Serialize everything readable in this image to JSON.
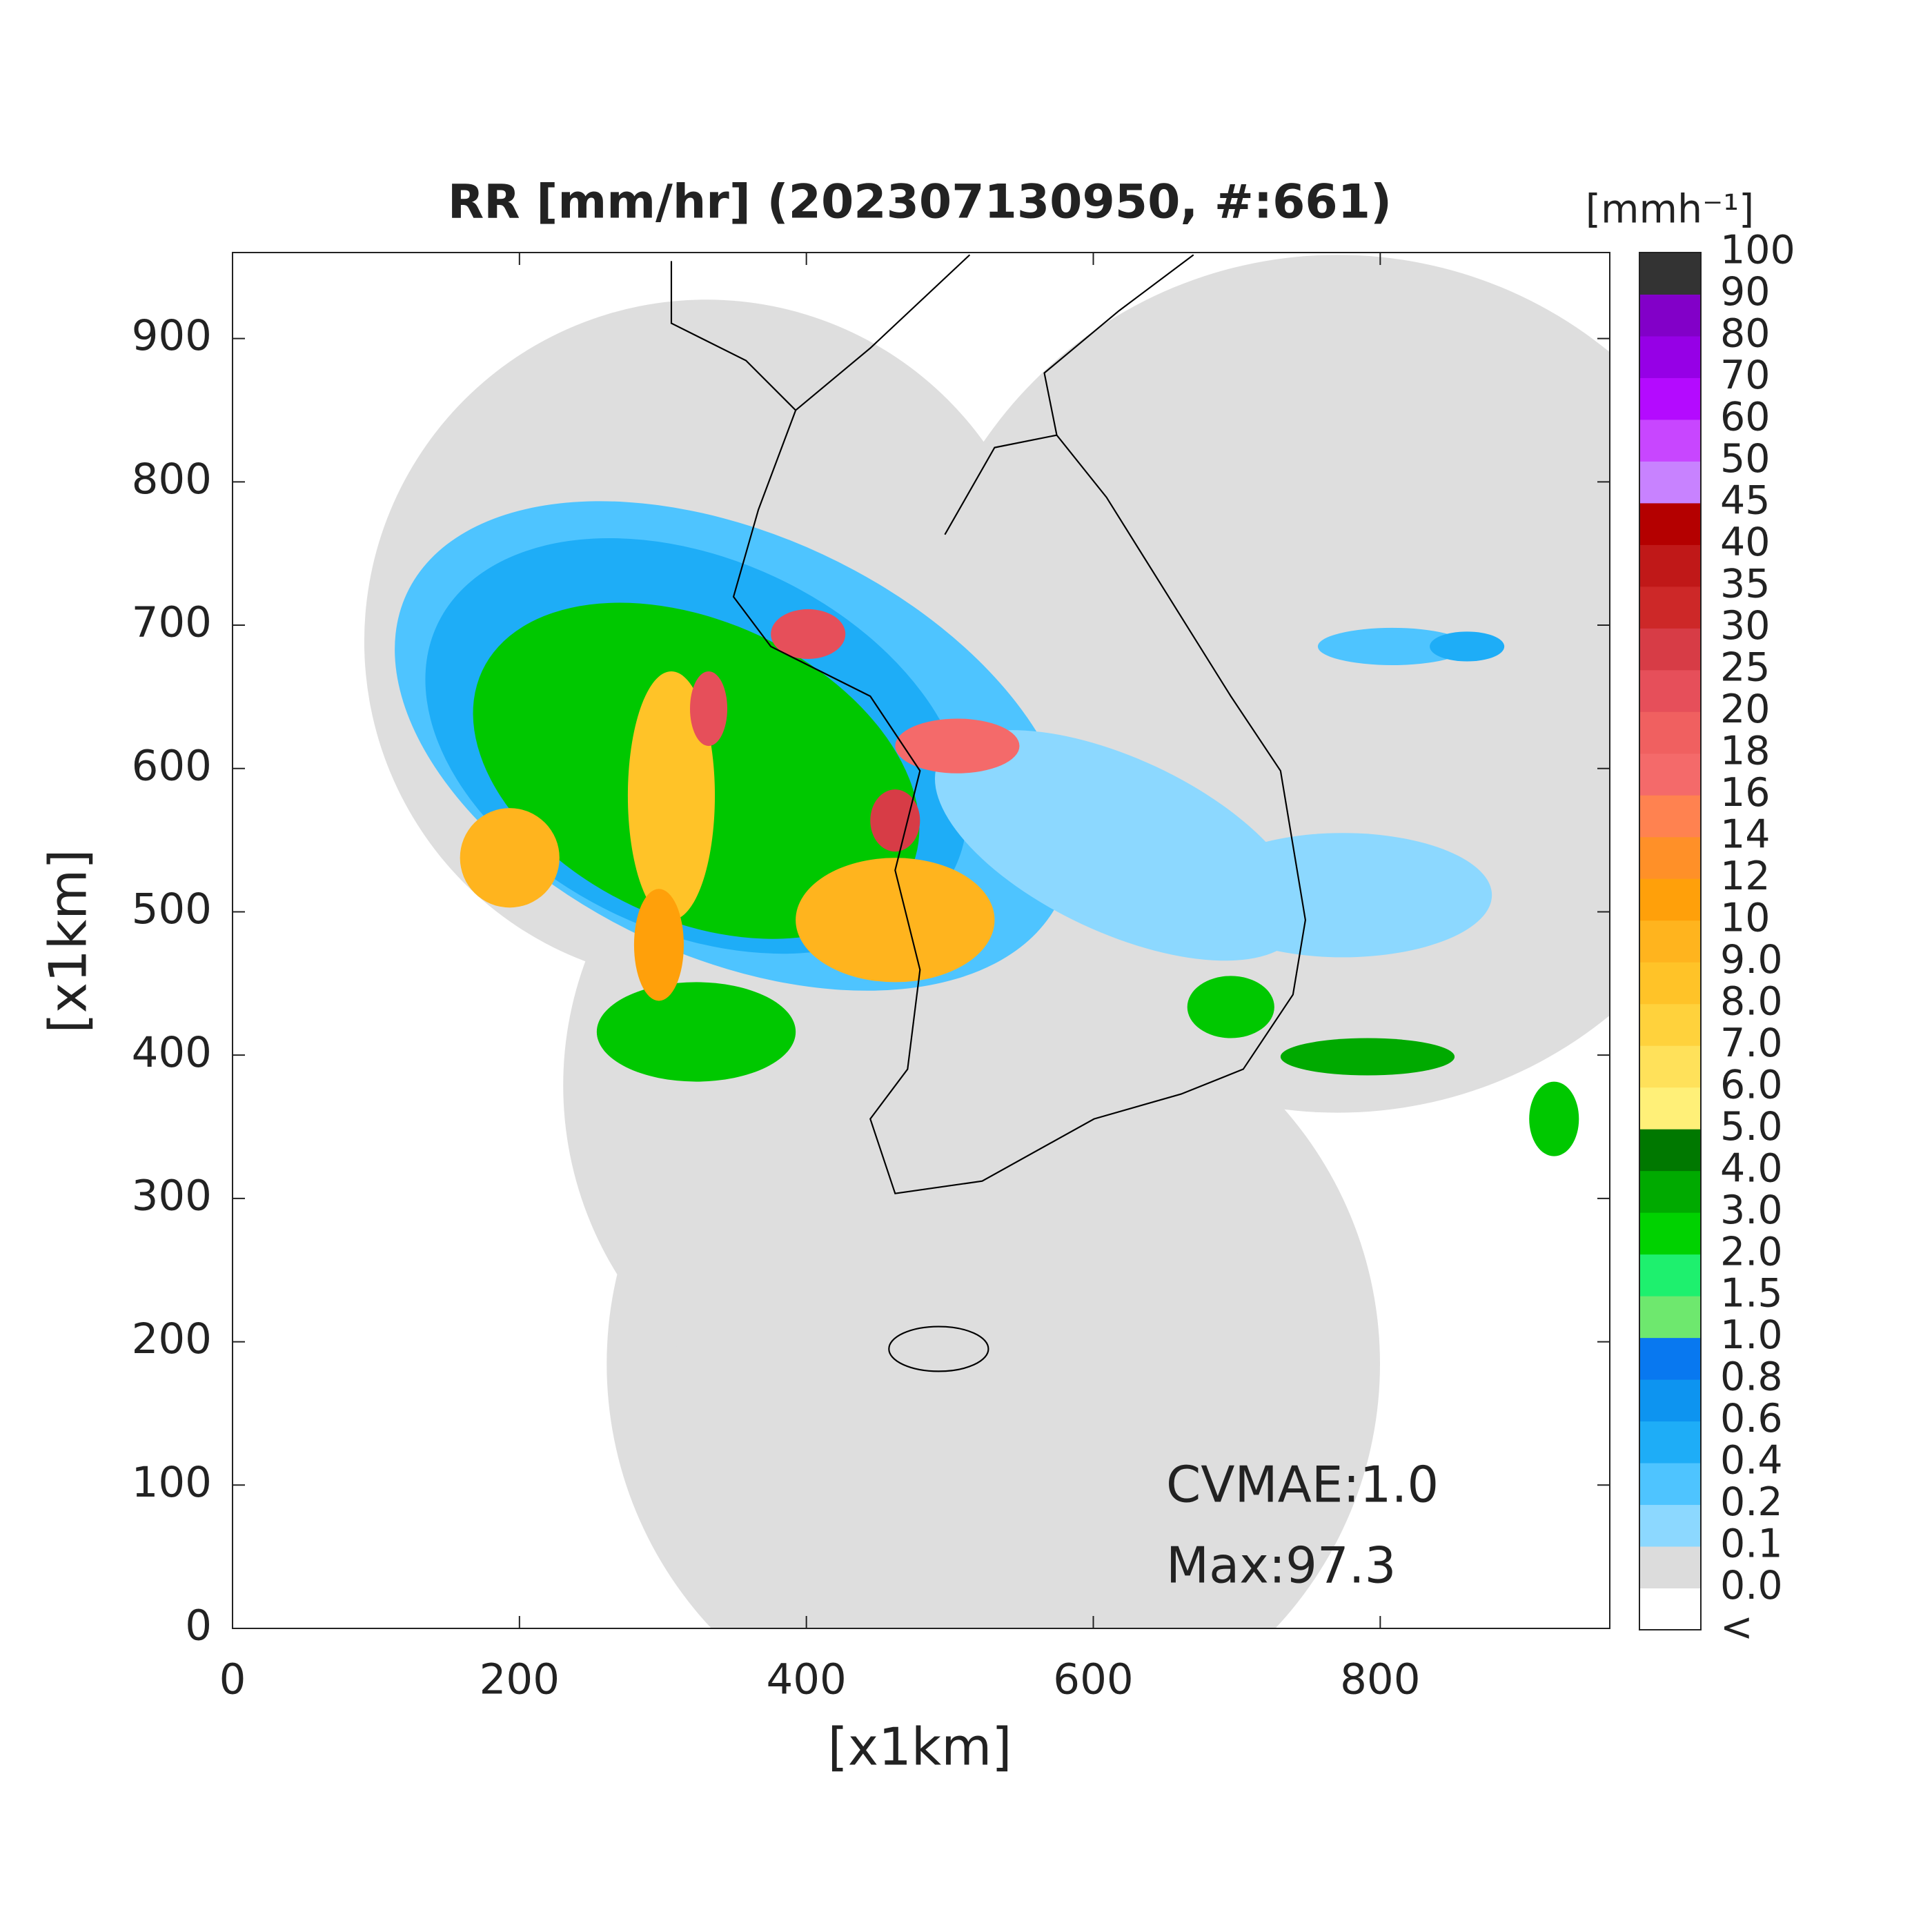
{
  "chart_data": {
    "type": "heatmap",
    "title": "RR [mm/hr] (202307130950, #:661)",
    "xlabel": "[x1km]",
    "ylabel": "[x1km]",
    "xlim": [
      0,
      960
    ],
    "ylim": [
      0,
      960
    ],
    "xticks": [
      0,
      200,
      400,
      600,
      800
    ],
    "yticks": [
      0,
      100,
      200,
      300,
      400,
      500,
      600,
      700,
      800,
      900
    ],
    "annotations": [
      "CVMAE:1.0",
      "Max:97.3"
    ],
    "colorbar": {
      "label": "[mmh⁻¹]",
      "labels": [
        "<",
        "0.0",
        "0.1",
        "0.2",
        "0.4",
        "0.6",
        "0.8",
        "1.0",
        "1.5",
        "2.0",
        "3.0",
        "4.0",
        "5.0",
        "6.0",
        "7.0",
        "8.0",
        "9.0",
        "10",
        "12",
        "14",
        "16",
        "18",
        "20",
        "25",
        "30",
        "35",
        "40",
        "45",
        "50",
        "60",
        "70",
        "80",
        "90",
        "100"
      ],
      "colors": [
        "#ffffff",
        "#dcdcdc",
        "#8cd8ff",
        "#4ec4ff",
        "#1eadf7",
        "#0d94f0",
        "#0878f0",
        "#6ee86e",
        "#1ef06e",
        "#00d200",
        "#00aa00",
        "#007800",
        "#fff078",
        "#ffe15a",
        "#ffd23c",
        "#ffc328",
        "#ffb41e",
        "#ffa00a",
        "#ff9028",
        "#ff8250",
        "#f46a6a",
        "#f06060",
        "#e64f5a",
        "#d73c46",
        "#cd2828",
        "#c01818",
        "#b40000",
        "#c882ff",
        "#c846ff",
        "#b40aff",
        "#9600e6",
        "#8200c8",
        "#333333"
      ]
    }
  }
}
